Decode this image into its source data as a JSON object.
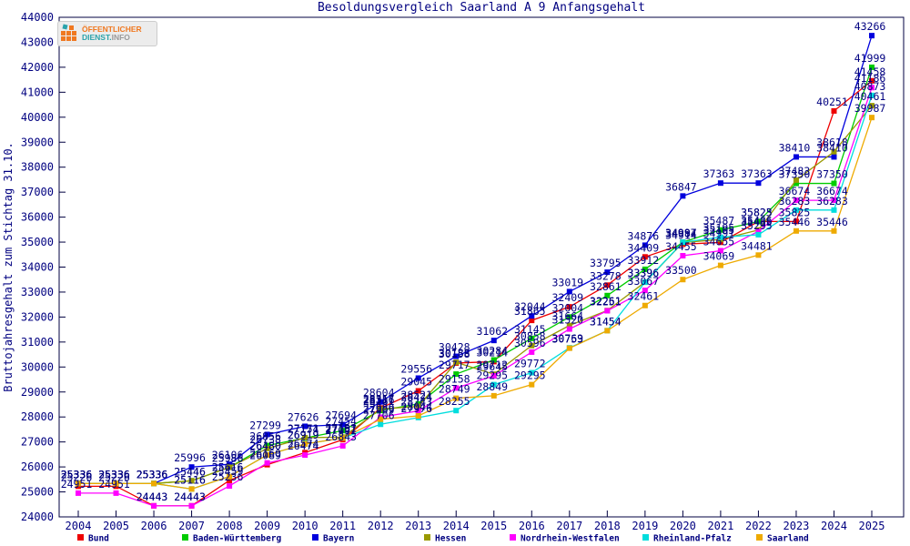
{
  "page_title": "Besoldungsvergleich Saarland A 9 Anfangsgehalt",
  "logo": {
    "line1": "ÖFFENTLICHER",
    "word1": "DIENST.",
    "word2": "INFO"
  },
  "colors": {
    "axis": "#000040",
    "label_text": "#000080",
    "background": "#ffffff"
  },
  "chart_data": {
    "type": "line",
    "title": "Besoldungsvergleich Saarland A 9 Anfangsgehalt",
    "xlabel": "",
    "ylabel": "Bruttojahresgehalt zum Stichtag 31.10.",
    "ylim": [
      24000,
      44000
    ],
    "ytick_step": 1000,
    "grid": false,
    "legend_position": "bottom",
    "marker": "square",
    "x": [
      2004,
      2005,
      2006,
      2007,
      2008,
      2009,
      2010,
      2011,
      2012,
      2013,
      2014,
      2015,
      2016,
      2017,
      2018,
      2019,
      2020,
      2021,
      2022,
      2023,
      2024,
      2025
    ],
    "series": [
      {
        "name": "Bund",
        "color": "#ee0000",
        "values": [
          25226,
          25226,
          24443,
          24443,
          25459,
          26089,
          26574,
          27091,
          28357,
          29045,
          30158,
          30214,
          31865,
          32409,
          33278,
          34409,
          34914,
          34991,
          35825,
          35825,
          40251,
          41458
        ]
      },
      {
        "name": "Baden-Württemberg",
        "color": "#00cc00",
        "values": [
          25336,
          25336,
          25336,
          25446,
          25986,
          26856,
          27154,
          27454,
          28261,
          28521,
          29717,
          30284,
          31145,
          32004,
          32861,
          33912,
          34997,
          35487,
          35823,
          37350,
          37350,
          41999
        ]
      },
      {
        "name": "Bayern",
        "color": "#0000dd",
        "values": [
          25336,
          25336,
          25336,
          25996,
          26106,
          27299,
          27626,
          27694,
          28604,
          29556,
          30428,
          31062,
          32044,
          33019,
          33795,
          34876,
          36847,
          37363,
          37363,
          38410,
          38410,
          43266
        ]
      },
      {
        "name": "Hessen",
        "color": "#999900",
        "values": [
          25336,
          25336,
          25336,
          25446,
          25986,
          26738,
          27171,
          27191,
          28316,
          28424,
          30188,
          29712,
          30858,
          31664,
          32261,
          33396,
          34984,
          35105,
          35486,
          37483,
          38618,
          40461
        ]
      },
      {
        "name": "Nordrhein-Westfalen",
        "color": "#ff00ff",
        "values": [
          24951,
          24951,
          24443,
          24443,
          25236,
          26160,
          26474,
          26843,
          27989,
          28243,
          29158,
          29645,
          30596,
          31520,
          32251,
          33067,
          34455,
          34655,
          35435,
          36674,
          36674,
          41186
        ]
      },
      {
        "name": "Rheinland-Pfalz",
        "color": "#00dddd",
        "values": [
          25336,
          25336,
          25336,
          25116,
          25616,
          26480,
          26919,
          27157,
          27706,
          27976,
          28255,
          29295,
          29772,
          30769,
          31454,
          33396,
          34997,
          35195,
          35295,
          36283,
          36283,
          40873
        ]
      },
      {
        "name": "Saarland",
        "color": "#eeaa00",
        "values": [
          25336,
          25336,
          25336,
          25116,
          25616,
          26480,
          26919,
          27157,
          27909,
          28044,
          28749,
          28849,
          29295,
          30753,
          31454,
          32461,
          33500,
          34069,
          34481,
          35446,
          35446,
          39987
        ]
      }
    ]
  }
}
